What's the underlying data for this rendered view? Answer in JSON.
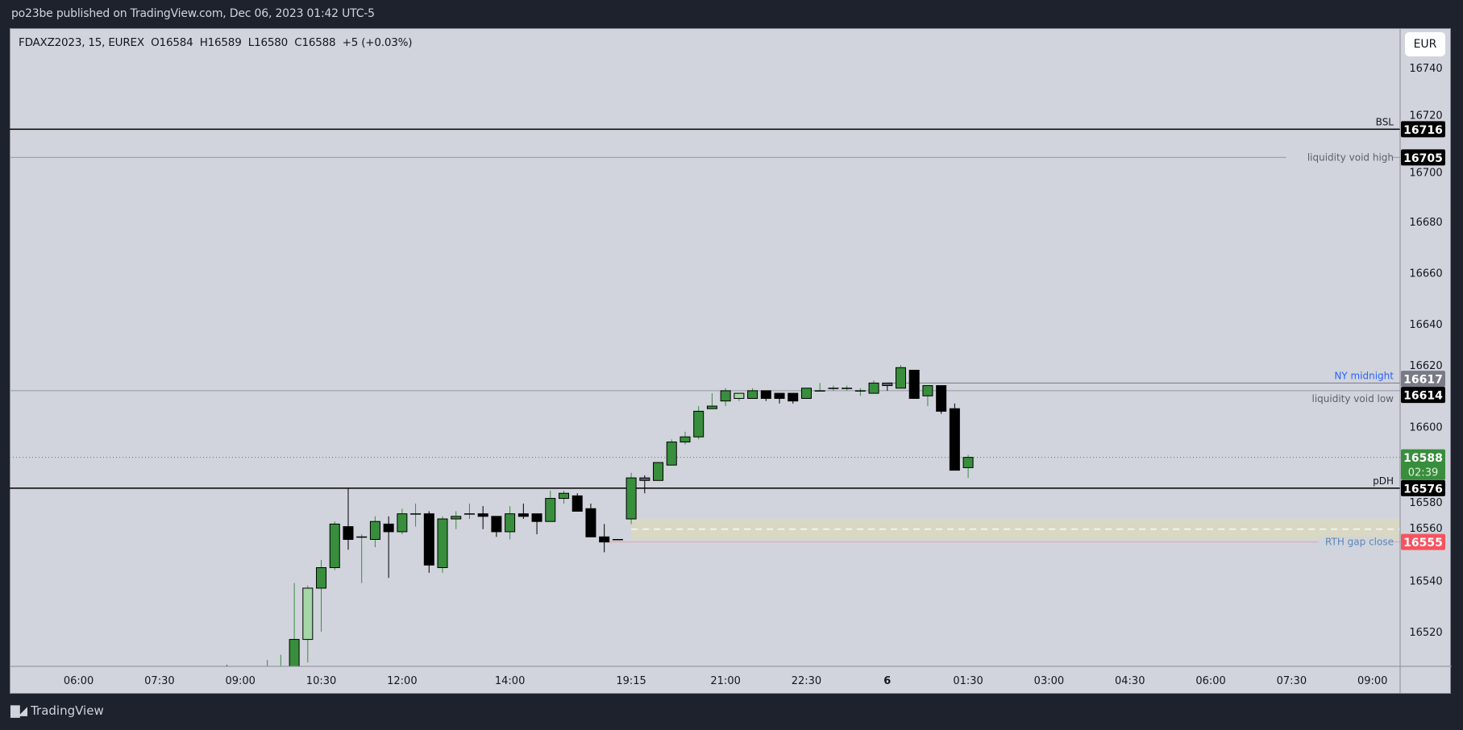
{
  "header": {
    "published": "po23be published on TradingView.com, Dec 06, 2023 01:42 UTC-5"
  },
  "legend": {
    "symbol": "FDAXZ2023, 15, EUREX",
    "open": "O16584",
    "high": "H16589",
    "low": "L16580",
    "close": "C16588",
    "change": "+5 (+0.03%)"
  },
  "currency_button": "EUR",
  "footer": {
    "brand": "TradingView",
    "logo_icon": "tradingview-logo-icon"
  },
  "colors": {
    "background": "#d1d4dc",
    "up": "#388e3c",
    "down": "#000000",
    "highlight_light": "#a5d6a7",
    "highlight_gray": "#5d606b",
    "gap_zone": "#d8d8c4"
  },
  "chart_data": {
    "type": "candlestick",
    "symbol": "FDAXZ2023",
    "interval": "15",
    "ylim": [
      16505,
      16755
    ],
    "y_ticks": [
      "16740",
      "16720",
      "16700",
      "16680",
      "16660",
      "16640",
      "16620",
      "16600",
      "16580",
      "16560",
      "16540",
      "16520"
    ],
    "x_ticks": [
      {
        "label": "06:00",
        "bar": -11
      },
      {
        "label": "07:30",
        "bar": -5
      },
      {
        "label": "09:00",
        "bar": 1
      },
      {
        "label": "10:30",
        "bar": 7
      },
      {
        "label": "12:00",
        "bar": 13
      },
      {
        "label": "14:00",
        "bar": 21
      },
      {
        "label": "19:15",
        "bar": 30
      },
      {
        "label": "21:00",
        "bar": 37
      },
      {
        "label": "22:30",
        "bar": 43
      },
      {
        "label": "6",
        "bar": 49,
        "bold": true
      },
      {
        "label": "01:30",
        "bar": 55
      },
      {
        "label": "03:00",
        "bar": 61
      },
      {
        "label": "04:30",
        "bar": 67
      },
      {
        "label": "06:00",
        "bar": 73
      },
      {
        "label": "07:30",
        "bar": 79
      },
      {
        "label": "09:00",
        "bar": 85
      }
    ],
    "candles": [
      {
        "t": "08:45",
        "o": 16502,
        "h": 16507,
        "l": 16495,
        "c": 16499
      },
      {
        "t": "09:00",
        "o": null,
        "h": null,
        "l": null,
        "c": null
      },
      {
        "t": "09:15",
        "o": null,
        "h": null,
        "l": null,
        "c": null
      },
      {
        "t": "09:30",
        "o": 16500,
        "h": 16509,
        "l": 16497,
        "c": 16505
      },
      {
        "t": "09:45",
        "o": 16502,
        "h": 16511,
        "l": 16499,
        "c": 16506
      },
      {
        "t": "10:00",
        "o": 16505,
        "h": 16539,
        "l": 16503,
        "c": 16517
      },
      {
        "t": "10:15",
        "o": 16517,
        "h": 16538,
        "l": 16508,
        "c": 16537,
        "color": "#a5d6a7"
      },
      {
        "t": "10:30",
        "o": 16537,
        "h": 16548,
        "l": 16520,
        "c": 16545
      },
      {
        "t": "10:45",
        "o": 16545,
        "h": 16563,
        "l": 16544,
        "c": 16562
      },
      {
        "t": "11:00",
        "o": 16561,
        "h": 16576,
        "l": 16552,
        "c": 16556
      },
      {
        "t": "11:15",
        "o": 16557,
        "h": 16558,
        "l": 16539,
        "c": 16557
      },
      {
        "t": "11:30",
        "o": 16556,
        "h": 16565,
        "l": 16553,
        "c": 16563
      },
      {
        "t": "11:45",
        "o": 16562,
        "h": 16565,
        "l": 16541,
        "c": 16559
      },
      {
        "t": "12:00",
        "o": 16559,
        "h": 16568,
        "l": 16558,
        "c": 16566
      },
      {
        "t": "12:15",
        "o": 16566,
        "h": 16570,
        "l": 16561,
        "c": 16566
      },
      {
        "t": "12:30",
        "o": 16566,
        "h": 16567,
        "l": 16543,
        "c": 16546
      },
      {
        "t": "12:45",
        "o": 16545,
        "h": 16565,
        "l": 16543,
        "c": 16564
      },
      {
        "t": "13:00",
        "o": 16564,
        "h": 16567,
        "l": 16560,
        "c": 16565
      },
      {
        "t": "13:15",
        "o": 16566,
        "h": 16570,
        "l": 16564,
        "c": 16566
      },
      {
        "t": "13:30",
        "o": 16566,
        "h": 16569,
        "l": 16560,
        "c": 16565
      },
      {
        "t": "13:45",
        "o": 16565,
        "h": 16565,
        "l": 16557,
        "c": 16559
      },
      {
        "t": "14:00",
        "o": 16559,
        "h": 16569,
        "l": 16556,
        "c": 16566
      },
      {
        "t": "14:15",
        "o": 16566,
        "h": 16570,
        "l": 16564,
        "c": 16565
      },
      {
        "t": "14:30",
        "o": 16566,
        "h": 16566,
        "l": 16558,
        "c": 16563
      },
      {
        "t": "14:45",
        "o": 16563,
        "h": 16575,
        "l": 16563,
        "c": 16572
      },
      {
        "t": "15:00",
        "o": 16572,
        "h": 16575,
        "l": 16570,
        "c": 16574
      },
      {
        "t": "15:15",
        "o": 16573,
        "h": 16574,
        "l": 16567,
        "c": 16567
      },
      {
        "t": "15:30",
        "o": 16568,
        "h": 16570,
        "l": 16557,
        "c": 16557
      },
      {
        "t": "15:45",
        "o": 16557,
        "h": 16562,
        "l": 16551,
        "c": 16555
      },
      {
        "t": "16:00",
        "o": 16556,
        "h": 16556,
        "l": 16556,
        "c": 16556,
        "color": "#000000"
      },
      {
        "t": "19:15",
        "o": 16564,
        "h": 16582,
        "l": 16562,
        "c": 16580
      },
      {
        "t": "19:30",
        "o": 16579,
        "h": 16581,
        "l": 16574,
        "c": 16580,
        "color": "#5d606b"
      },
      {
        "t": "19:45",
        "o": 16579,
        "h": 16586,
        "l": 16579,
        "c": 16586
      },
      {
        "t": "20:00",
        "o": 16585,
        "h": 16595,
        "l": 16585,
        "c": 16594
      },
      {
        "t": "20:15",
        "o": 16594,
        "h": 16598,
        "l": 16593,
        "c": 16596
      },
      {
        "t": "20:30",
        "o": 16596,
        "h": 16608,
        "l": 16595,
        "c": 16606
      },
      {
        "t": "20:45",
        "o": 16607,
        "h": 16613,
        "l": 16607,
        "c": 16608
      },
      {
        "t": "21:00",
        "o": 16610,
        "h": 16615,
        "l": 16608,
        "c": 16614
      },
      {
        "t": "21:15",
        "o": 16611,
        "h": 16613,
        "l": 16610,
        "c": 16613,
        "color": "#a5d6a7"
      },
      {
        "t": "21:30",
        "o": 16611,
        "h": 16615,
        "l": 16611,
        "c": 16614
      },
      {
        "t": "21:45",
        "o": 16614,
        "h": 16614,
        "l": 16610,
        "c": 16611
      },
      {
        "t": "22:00",
        "o": 16613,
        "h": 16613,
        "l": 16609,
        "c": 16611
      },
      {
        "t": "22:15",
        "o": 16613,
        "h": 16613,
        "l": 16609,
        "c": 16610
      },
      {
        "t": "22:30",
        "o": 16611,
        "h": 16615,
        "l": 16611,
        "c": 16615
      },
      {
        "t": "22:45",
        "o": 16614,
        "h": 16617,
        "l": 16614,
        "c": 16614
      },
      {
        "t": "23:00",
        "o": 16615,
        "h": 16616,
        "l": 16614,
        "c": 16615
      },
      {
        "t": "23:15",
        "o": 16615,
        "h": 16616,
        "l": 16614,
        "c": 16615
      },
      {
        "t": "23:30",
        "o": 16614,
        "h": 16615,
        "l": 16612,
        "c": 16614
      },
      {
        "t": "23:45",
        "o": 16613,
        "h": 16618,
        "l": 16613,
        "c": 16617
      },
      {
        "t": "00:00",
        "o": 16616,
        "h": 16617,
        "l": 16614,
        "c": 16617,
        "color": "#5d606b"
      },
      {
        "t": "00:15",
        "o": 16615,
        "h": 16624,
        "l": 16615,
        "c": 16623
      },
      {
        "t": "00:30",
        "o": 16622,
        "h": 16622,
        "l": 16611,
        "c": 16611
      },
      {
        "t": "00:45",
        "o": 16612,
        "h": 16616,
        "l": 16608,
        "c": 16616
      },
      {
        "t": "01:00",
        "o": 16616,
        "h": 16616,
        "l": 16605,
        "c": 16606
      },
      {
        "t": "01:15",
        "o": 16607,
        "h": 16609,
        "l": 16583,
        "c": 16583
      },
      {
        "t": "01:30",
        "o": 16584,
        "h": 16589,
        "l": 16580,
        "c": 16588
      }
    ],
    "levels": [
      {
        "name": "bsl",
        "label": "BSL",
        "price": 16716,
        "price_label": "16716",
        "line_color": "#000000",
        "text_color": "#131722",
        "label_bg": "#000000",
        "label_pos": "above"
      },
      {
        "name": "liquidity-void-high",
        "label": "liquidity void high",
        "price": 16705,
        "price_label": "16705",
        "line_color": "#9598a1",
        "text_color": "#5d606b",
        "label_bg": "#000000",
        "label_pos": "inline"
      },
      {
        "name": "ny-midnight",
        "label": "NY midnight",
        "price": 16617,
        "price_label": "16617",
        "line_color": "#787b86",
        "text_color": "#2962ff",
        "label_bg": "#787b86",
        "label_pos": "inline",
        "from": "00:00"
      },
      {
        "name": "liquidity-void-low",
        "label": "liquidity void low",
        "price": 16614,
        "price_label": "16614",
        "line_color": "#9598a1",
        "text_color": "#5d606b",
        "label_bg": "#000000",
        "label_pos": "inline",
        "label_dy": 1
      },
      {
        "name": "pdh",
        "label": "pDH",
        "price": 16576,
        "price_label": "16576",
        "line_color": "#000000",
        "text_color": "#131722",
        "label_bg": "#000000",
        "label_pos": "above"
      },
      {
        "name": "rth-gap-close",
        "label": "RTH gap close",
        "price": 16555,
        "price_label": "16555",
        "line_color": "#e8a0a8",
        "text_color": "#5b87b5",
        "label_bg": "#f7525f",
        "label_pos": "inline",
        "from": "15:45"
      }
    ],
    "gap_zone": {
      "from": "19:15",
      "top": 16564,
      "bottom": 16556,
      "mid": 16560
    },
    "last_price": {
      "price": 16588,
      "label": "16588",
      "countdown": "02:39",
      "color": "#388e3c"
    }
  }
}
